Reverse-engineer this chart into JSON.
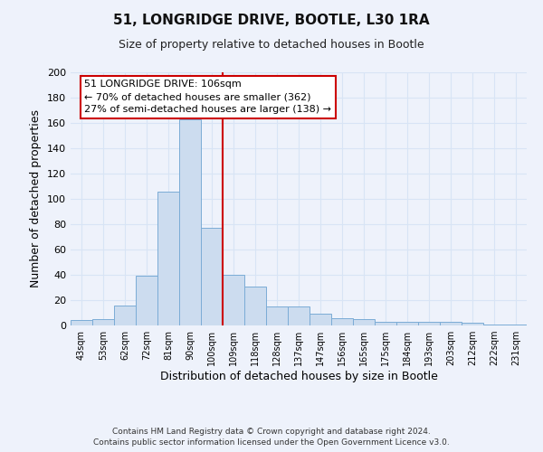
{
  "title": "51, LONGRIDGE DRIVE, BOOTLE, L30 1RA",
  "subtitle": "Size of property relative to detached houses in Bootle",
  "xlabel": "Distribution of detached houses by size in Bootle",
  "ylabel": "Number of detached properties",
  "bin_labels": [
    "43sqm",
    "53sqm",
    "62sqm",
    "72sqm",
    "81sqm",
    "90sqm",
    "100sqm",
    "109sqm",
    "118sqm",
    "128sqm",
    "137sqm",
    "147sqm",
    "156sqm",
    "165sqm",
    "175sqm",
    "184sqm",
    "193sqm",
    "203sqm",
    "212sqm",
    "222sqm",
    "231sqm"
  ],
  "bar_heights": [
    4,
    5,
    16,
    39,
    106,
    163,
    77,
    40,
    31,
    15,
    15,
    9,
    6,
    5,
    3,
    3,
    3,
    3,
    2,
    1,
    1
  ],
  "bar_color": "#ccdcef",
  "bar_edge_color": "#7bacd6",
  "vline_x": 6.5,
  "vline_color": "#cc0000",
  "ylim": [
    0,
    200
  ],
  "yticks": [
    0,
    20,
    40,
    60,
    80,
    100,
    120,
    140,
    160,
    180,
    200
  ],
  "annotation_title": "51 LONGRIDGE DRIVE: 106sqm",
  "annotation_line1": "← 70% of detached houses are smaller (362)",
  "annotation_line2": "27% of semi-detached houses are larger (138) →",
  "annotation_box_color": "#ffffff",
  "annotation_box_edge": "#cc0000",
  "footer_line1": "Contains HM Land Registry data © Crown copyright and database right 2024.",
  "footer_line2": "Contains public sector information licensed under the Open Government Licence v3.0.",
  "background_color": "#eef2fb",
  "plot_background": "#eef2fb",
  "grid_color": "#d8e4f5"
}
